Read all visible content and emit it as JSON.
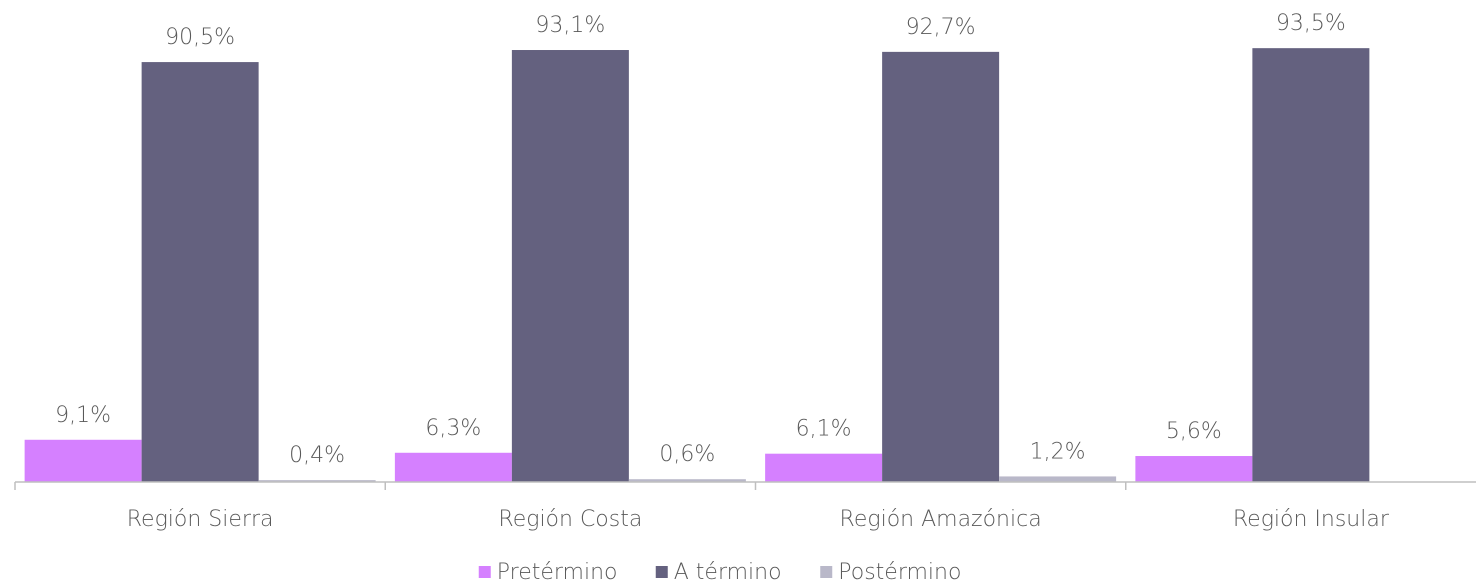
{
  "chart_data": {
    "type": "bar",
    "categories": [
      "Región Sierra",
      "Región Costa",
      "Región Amazónica",
      "Región Insular"
    ],
    "series": [
      {
        "name": "Pretérmino",
        "color": "#d580ff",
        "values": [
          9.1,
          6.3,
          6.1,
          5.6
        ],
        "value_labels": [
          "9,1%",
          "6,3%",
          "6,1%",
          "5,6%"
        ]
      },
      {
        "name": "A término",
        "color": "#64617f",
        "values": [
          90.5,
          93.1,
          92.7,
          93.5
        ],
        "value_labels": [
          "90,5%",
          "93,1%",
          "92,7%",
          "93,5%"
        ]
      },
      {
        "name": "Postérmino",
        "color": "#b9b8c9",
        "values": [
          0.4,
          0.6,
          1.2,
          null
        ],
        "value_labels": [
          "0,4%",
          "0,6%",
          "1,2%",
          null
        ]
      }
    ],
    "ylim": [
      0,
      100
    ],
    "legend": "bottom"
  }
}
